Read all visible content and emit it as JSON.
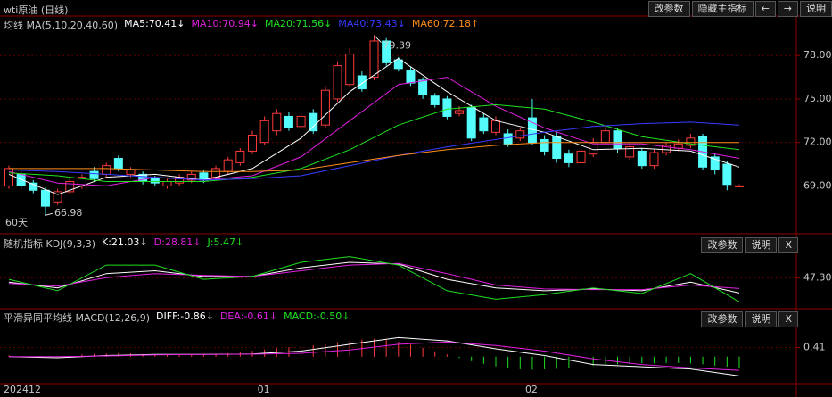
{
  "toolbar": {
    "title": "wti原油 (日线)",
    "buttons": [
      "改参数",
      "隐藏主指标",
      "←",
      "→",
      "说明"
    ]
  },
  "chart_data": [
    {
      "type": "candlestick",
      "title": "均线 MA(5,10,20,40,60)",
      "categories": [
        "202412",
        null,
        null,
        null,
        null,
        null,
        null,
        null,
        null,
        null,
        null,
        null,
        null,
        null,
        null,
        null,
        null,
        null,
        null,
        null,
        null,
        "01",
        null,
        null,
        null,
        null,
        null,
        null,
        null,
        null,
        null,
        null,
        null,
        null,
        null,
        null,
        null,
        null,
        null,
        null,
        null,
        null,
        null,
        "02",
        null,
        null,
        null,
        null,
        null,
        null,
        null,
        null,
        null,
        null,
        null,
        null,
        null,
        null,
        null,
        null,
        null
      ],
      "open": [
        69.0,
        69.8,
        69.2,
        68.7,
        67.9,
        68.6,
        69.0,
        70.0,
        69.8,
        70.9,
        69.8,
        69.8,
        69.5,
        69.0,
        69.2,
        69.4,
        69.9,
        69.6,
        70.0,
        70.6,
        71.4,
        72.0,
        72.8,
        73.8,
        73.1,
        74.0,
        73.2,
        75.0,
        76.0,
        76.6,
        76.5,
        79.0,
        77.7,
        77.0,
        76.3,
        75.2,
        75.0,
        74.0,
        74.4,
        73.7,
        72.7,
        72.6,
        72.3,
        73.7,
        72.2,
        72.4,
        71.2,
        70.6,
        71.2,
        72.0,
        72.8,
        71.0,
        71.4,
        70.4,
        71.3,
        71.6,
        71.8,
        72.4,
        71.0,
        70.5,
        69.0
      ],
      "high": [
        70.4,
        70.0,
        69.4,
        68.9,
        68.8,
        69.5,
        69.8,
        70.3,
        70.6,
        71.1,
        70.3,
        70.0,
        69.7,
        69.5,
        69.8,
        70.0,
        70.1,
        70.4,
        71.0,
        71.6,
        72.8,
        73.8,
        74.3,
        74.1,
        74.0,
        74.3,
        75.9,
        77.6,
        78.5,
        76.9,
        79.39,
        79.2,
        77.9,
        77.2,
        76.5,
        75.4,
        75.2,
        74.5,
        74.6,
        74.0,
        73.8,
        72.9,
        73.0,
        75.0,
        72.5,
        72.7,
        71.5,
        71.6,
        72.3,
        73.1,
        73.0,
        72.0,
        71.6,
        71.5,
        72.0,
        72.2,
        72.6,
        72.6,
        71.3,
        70.7,
        69.1
      ],
      "low": [
        68.8,
        68.8,
        68.5,
        66.98,
        67.7,
        68.4,
        68.8,
        69.3,
        69.6,
        70.0,
        69.6,
        69.1,
        69.0,
        68.8,
        69.0,
        69.2,
        69.2,
        69.4,
        69.8,
        70.4,
        71.2,
        71.8,
        72.5,
        72.8,
        72.9,
        72.6,
        73.0,
        74.8,
        75.8,
        75.5,
        76.3,
        77.3,
        76.9,
        75.9,
        75.0,
        74.4,
        73.6,
        73.8,
        72.1,
        72.6,
        72.5,
        71.7,
        72.1,
        71.8,
        71.1,
        70.6,
        70.3,
        70.4,
        71.0,
        71.8,
        71.3,
        70.8,
        70.2,
        70.2,
        71.1,
        71.4,
        71.6,
        70.1,
        69.8,
        68.7,
        68.9
      ],
      "close": [
        70.2,
        69.0,
        68.7,
        67.6,
        68.6,
        69.3,
        69.6,
        69.5,
        70.4,
        70.2,
        70.1,
        69.3,
        69.2,
        69.3,
        69.6,
        69.8,
        69.4,
        70.2,
        70.8,
        71.4,
        72.5,
        73.5,
        74.0,
        73.0,
        73.8,
        72.8,
        75.6,
        77.3,
        78.1,
        75.7,
        79.0,
        77.5,
        77.1,
        76.1,
        75.3,
        74.6,
        73.8,
        74.2,
        72.3,
        72.8,
        73.5,
        71.9,
        72.8,
        72.0,
        71.4,
        70.9,
        70.6,
        71.4,
        72.0,
        72.8,
        71.6,
        71.7,
        70.4,
        71.3,
        71.8,
        71.9,
        72.3,
        70.3,
        70.1,
        69.1,
        69.0
      ],
      "up_color": "#ff3b3b",
      "down_color": "#54fcfc",
      "ylim": [
        65.7,
        80.6
      ],
      "yticks": [
        {
          "value": 69,
          "label": "69.00"
        },
        {
          "value": 72,
          "label": "72.00"
        },
        {
          "value": 75,
          "label": "75.00"
        },
        {
          "value": 78,
          "label": "78.00"
        }
      ],
      "grid": true,
      "series": [
        {
          "name": "MA5:70.41↓",
          "color": "#ffffff",
          "x": [
            0,
            4,
            8,
            12,
            16,
            20,
            24,
            28,
            32,
            36,
            40,
            44,
            48,
            52,
            56,
            60
          ],
          "values": [
            69.8,
            68.4,
            69.6,
            69.8,
            69.4,
            70.2,
            72.3,
            75.5,
            77.8,
            75.5,
            73.5,
            72.7,
            71.5,
            71.6,
            71.4,
            70.3
          ]
        },
        {
          "name": "MA10:70.94↓",
          "color": "#e020e0",
          "x": [
            0,
            4,
            8,
            12,
            16,
            20,
            24,
            28,
            32,
            36,
            40,
            44,
            48,
            52,
            56,
            60
          ],
          "values": [
            70.0,
            69.2,
            69.0,
            69.6,
            69.4,
            69.7,
            71.0,
            73.5,
            76.0,
            76.5,
            74.5,
            73.0,
            71.9,
            71.9,
            71.5,
            70.9
          ]
        },
        {
          "name": "MA20:71.56↓",
          "color": "#20e020",
          "x": [
            0,
            4,
            8,
            12,
            16,
            20,
            24,
            28,
            32,
            36,
            40,
            44,
            48,
            52,
            56,
            60
          ],
          "values": [
            69.9,
            69.7,
            69.3,
            69.3,
            69.3,
            69.6,
            70.2,
            71.5,
            73.2,
            74.3,
            74.6,
            74.3,
            73.4,
            72.4,
            71.9,
            71.5
          ]
        },
        {
          "name": "MA40:73.43↓",
          "color": "#3a3aff",
          "x": [
            0,
            4,
            8,
            12,
            16,
            20,
            24,
            28,
            32,
            36,
            40,
            44,
            48,
            52,
            56,
            60
          ],
          "values": [
            70.1,
            70.0,
            69.8,
            69.6,
            69.4,
            69.5,
            69.7,
            70.4,
            71.1,
            71.7,
            72.2,
            72.7,
            73.1,
            73.3,
            73.4,
            73.2
          ]
        },
        {
          "name": "MA60:72.18↑",
          "color": "#ff8c1a",
          "x": [
            0,
            4,
            8,
            12,
            16,
            20,
            24,
            28,
            32,
            36,
            40,
            44,
            48,
            52,
            56,
            60
          ],
          "values": [
            70.2,
            70.2,
            70.2,
            70.1,
            70.0,
            70.0,
            70.1,
            70.6,
            71.1,
            71.5,
            71.8,
            72.0,
            72.0,
            72.0,
            72.0,
            72.0
          ]
        }
      ],
      "annotations": [
        {
          "x": 30,
          "value": 79.39
        },
        {
          "x": 3,
          "value": 66.98
        }
      ],
      "period_label": "60天"
    },
    {
      "type": "line",
      "title": "随机指标 KDJ(9,3,3)",
      "buttons": [
        "改参数",
        "说明",
        "X"
      ],
      "ylim": [
        -5,
        100
      ],
      "yticks": [
        {
          "value": 47.3,
          "label": "47.30"
        }
      ],
      "grid": true,
      "series": [
        {
          "name": "K:21.03↓",
          "color": "#ffffff",
          "x": [
            0,
            4,
            8,
            12,
            16,
            20,
            24,
            28,
            32,
            36,
            40,
            44,
            48,
            52,
            56,
            60
          ],
          "values": [
            40,
            30,
            55,
            60,
            50,
            50,
            65,
            75,
            72,
            45,
            30,
            25,
            28,
            25,
            40,
            21.03
          ]
        },
        {
          "name": "D:28.81↓",
          "color": "#e020e0",
          "x": [
            0,
            4,
            8,
            12,
            16,
            20,
            24,
            28,
            32,
            36,
            40,
            44,
            48,
            52,
            56,
            60
          ],
          "values": [
            38,
            33,
            48,
            55,
            52,
            50,
            60,
            70,
            73,
            55,
            35,
            28,
            27,
            27,
            35,
            28.81
          ]
        },
        {
          "name": "J:5.47↓",
          "color": "#20e020",
          "x": [
            0,
            4,
            8,
            12,
            16,
            20,
            24,
            28,
            32,
            36,
            40,
            44,
            48,
            52,
            56,
            60
          ],
          "values": [
            45,
            25,
            70,
            70,
            45,
            50,
            75,
            85,
            70,
            25,
            10,
            18,
            30,
            20,
            55,
            5.47
          ]
        }
      ]
    },
    {
      "type": "macd",
      "title": "平滑异同平均线 MACD(12,26,9)",
      "buttons": [
        "改参数",
        "说明",
        "X"
      ],
      "ylim": [
        -1.2,
        1.5
      ],
      "yticks": [
        0.41
      ],
      "grid": true,
      "series": [
        {
          "name": "DIFF:-0.86↓",
          "color": "#ffffff",
          "x": [
            0,
            4,
            8,
            12,
            16,
            20,
            24,
            28,
            32,
            36,
            40,
            44,
            48,
            52,
            56,
            60
          ],
          "values": [
            0.0,
            -0.05,
            0.05,
            0.1,
            0.1,
            0.12,
            0.25,
            0.55,
            0.85,
            0.7,
            0.35,
            0.05,
            -0.35,
            -0.45,
            -0.55,
            -0.86
          ]
        },
        {
          "name": "DEA:-0.61↓",
          "color": "#e020e0",
          "x": [
            0,
            4,
            8,
            12,
            16,
            20,
            24,
            28,
            32,
            36,
            40,
            44,
            48,
            52,
            56,
            60
          ],
          "values": [
            0.0,
            0.0,
            0.03,
            0.08,
            0.1,
            0.11,
            0.15,
            0.3,
            0.55,
            0.65,
            0.5,
            0.25,
            -0.1,
            -0.35,
            -0.5,
            -0.61
          ]
        }
      ],
      "histogram": {
        "name": "MACD:-0.50↓",
        "color": "#20e020",
        "up_color": "#ff3b3b",
        "down_color": "#20e020",
        "values": [
          0.06,
          0.04,
          0.0,
          -0.04,
          0.0,
          0.06,
          0.1,
          0.12,
          0.14,
          0.16,
          0.14,
          0.12,
          0.1,
          0.08,
          0.08,
          0.1,
          0.12,
          0.14,
          0.16,
          0.2,
          0.26,
          0.32,
          0.38,
          0.42,
          0.46,
          0.5,
          0.56,
          0.64,
          0.72,
          0.76,
          0.8,
          0.76,
          0.66,
          0.54,
          0.4,
          0.24,
          0.1,
          -0.06,
          -0.2,
          -0.32,
          -0.44,
          -0.52,
          -0.56,
          -0.58,
          -0.56,
          -0.54,
          -0.5,
          -0.44,
          -0.4,
          -0.36,
          -0.34,
          -0.32,
          -0.3,
          -0.3,
          -0.28,
          -0.28,
          -0.3,
          -0.34,
          -0.4,
          -0.44,
          -0.5
        ]
      }
    }
  ]
}
